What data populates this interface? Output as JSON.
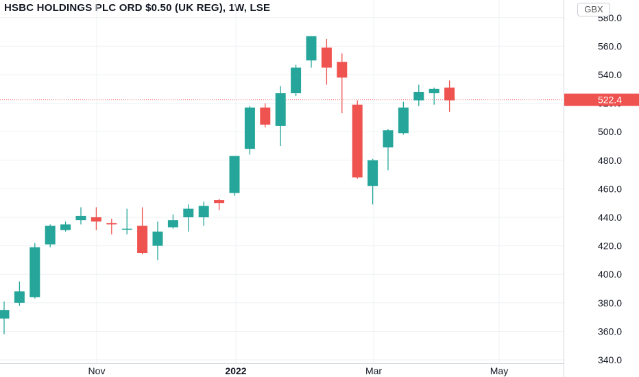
{
  "header": {
    "title": "HSBC HOLDINGS PLC ORD $0.50 (UK REG), 1W, LSE",
    "currency": "GBX"
  },
  "colors": {
    "up": "#26a69a",
    "down": "#ef5350",
    "grid": "#eef0f3",
    "axis_text": "#131722",
    "price_line": "#ef5350"
  },
  "chart_data": {
    "type": "candlestick",
    "title": "HSBC HOLDINGS PLC ORD $0.50 (UK REG), 1W, LSE",
    "interval": "1W",
    "y_axis": {
      "position": "right",
      "ylim": [
        340,
        580
      ],
      "ticks": [
        "340.0",
        "360.0",
        "380.0",
        "400.0",
        "420.0",
        "440.0",
        "460.0",
        "480.0",
        "500.0",
        "520.0",
        "540.0",
        "560.0",
        "580.0"
      ]
    },
    "x_axis_labels": [
      "Nov",
      "2022",
      "Mar",
      "May"
    ],
    "last_price": 522.4,
    "last_price_label": "522.4",
    "grid": true,
    "candles": [
      {
        "o": 369,
        "h": 381,
        "l": 358,
        "c": 375
      },
      {
        "o": 380,
        "h": 395,
        "l": 378,
        "c": 388
      },
      {
        "o": 384,
        "h": 422,
        "l": 383,
        "c": 419
      },
      {
        "o": 421,
        "h": 435,
        "l": 419,
        "c": 434
      },
      {
        "o": 431,
        "h": 437,
        "l": 430,
        "c": 435
      },
      {
        "o": 438,
        "h": 447,
        "l": 435,
        "c": 441
      },
      {
        "o": 440,
        "h": 447,
        "l": 431,
        "c": 437
      },
      {
        "o": 436,
        "h": 439,
        "l": 428,
        "c": 435
      },
      {
        "o": 432,
        "h": 446,
        "l": 428,
        "c": 432
      },
      {
        "o": 434,
        "h": 447,
        "l": 414,
        "c": 415
      },
      {
        "o": 420,
        "h": 437,
        "l": 410,
        "c": 430
      },
      {
        "o": 433,
        "h": 442,
        "l": 432,
        "c": 438
      },
      {
        "o": 440,
        "h": 449,
        "l": 430,
        "c": 446
      },
      {
        "o": 440,
        "h": 451,
        "l": 434,
        "c": 448
      },
      {
        "o": 452,
        "h": 453,
        "l": 445,
        "c": 450
      },
      {
        "o": 457,
        "h": 482,
        "l": 455,
        "c": 483
      },
      {
        "o": 488,
        "h": 518,
        "l": 484,
        "c": 517
      },
      {
        "o": 517,
        "h": 520,
        "l": 503,
        "c": 505
      },
      {
        "o": 504,
        "h": 532,
        "l": 490,
        "c": 527
      },
      {
        "o": 527,
        "h": 547,
        "l": 525,
        "c": 545
      },
      {
        "o": 550,
        "h": 567,
        "l": 545,
        "c": 567
      },
      {
        "o": 559,
        "h": 565,
        "l": 533,
        "c": 545
      },
      {
        "o": 549,
        "h": 555,
        "l": 513,
        "c": 538
      },
      {
        "o": 519,
        "h": 522,
        "l": 467,
        "c": 468
      },
      {
        "o": 462,
        "h": 481,
        "l": 449,
        "c": 480
      },
      {
        "o": 489,
        "h": 502,
        "l": 473,
        "c": 501
      },
      {
        "o": 499,
        "h": 521,
        "l": 498,
        "c": 517
      },
      {
        "o": 522,
        "h": 533,
        "l": 518,
        "c": 528
      },
      {
        "o": 527,
        "h": 531,
        "l": 519,
        "c": 530
      },
      {
        "o": 531,
        "h": 536,
        "l": 514,
        "c": 522
      }
    ]
  }
}
